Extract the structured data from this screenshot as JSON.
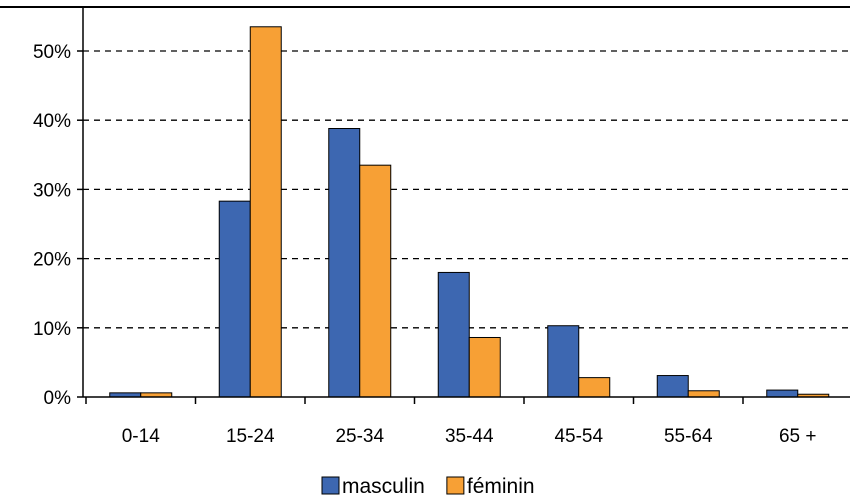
{
  "chart_data": {
    "type": "bar",
    "categories": [
      "0-14",
      "15-24",
      "25-34",
      "35-44",
      "45-54",
      "55-64",
      "65 +"
    ],
    "series": [
      {
        "name": "masculin",
        "color": "#3d67b1",
        "values": [
          0.6,
          28.3,
          38.8,
          18.0,
          10.3,
          3.1,
          1.0
        ]
      },
      {
        "name": "féminin",
        "color": "#f7a035",
        "values": [
          0.6,
          53.5,
          33.5,
          8.6,
          2.8,
          0.9,
          0.4
        ]
      }
    ],
    "ylim": [
      0,
      55
    ],
    "yticks": [
      0,
      10,
      20,
      30,
      40,
      50
    ],
    "ytick_labels": [
      "0%",
      "10%",
      "20%",
      "30%",
      "40%",
      "50%"
    ],
    "grid": "dashed horizontal",
    "legend": {
      "position": "bottom-center",
      "entries": [
        "masculin",
        "féminin"
      ]
    },
    "title": "",
    "xlabel": "",
    "ylabel": ""
  }
}
